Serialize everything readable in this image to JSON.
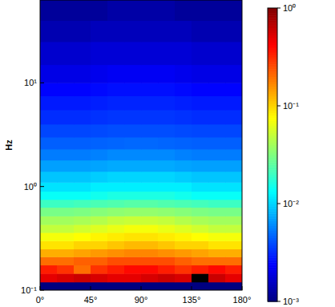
{
  "chart_data": {
    "type": "heatmap",
    "y_label": "Hz",
    "log": "y",
    "xlim": [
      0,
      180
    ],
    "ylim": [
      0.1,
      63
    ],
    "xticks": [
      {
        "value": 0,
        "label": "0°"
      },
      {
        "value": 45,
        "label": "45°"
      },
      {
        "value": 90,
        "label": "90°"
      },
      {
        "value": 135,
        "label": "135°"
      },
      {
        "value": 180,
        "label": "180°"
      }
    ],
    "yticks": [
      {
        "value": 0.1,
        "label": "10⁻¹"
      },
      {
        "value": 1,
        "label": "10⁰"
      },
      {
        "value": 10,
        "label": "10¹"
      }
    ],
    "x_edges": [
      0,
      15,
      30,
      45,
      60,
      75,
      90,
      105,
      120,
      135,
      150,
      165,
      180
    ],
    "y_edges": [
      0.1,
      0.12,
      0.145,
      0.175,
      0.21,
      0.25,
      0.3,
      0.36,
      0.43,
      0.52,
      0.63,
      0.75,
      0.9,
      1.1,
      1.4,
      1.8,
      2.3,
      3,
      4,
      5.5,
      7.5,
      10,
      15,
      25,
      40,
      63
    ],
    "cells": [
      [
        0.001,
        0.001,
        0.001,
        0.001,
        0.001,
        0.001,
        0.001,
        0.001,
        0.001,
        0.001,
        0.001,
        0.001
      ],
      [
        0.5,
        0.55,
        0.6,
        0.55,
        0.5,
        0.5,
        0.55,
        0.6,
        0.55,
        1.5,
        0.6,
        0.5
      ],
      [
        0.35,
        0.3,
        0.2,
        0.3,
        0.35,
        0.4,
        0.4,
        0.35,
        0.3,
        0.35,
        0.4,
        0.35
      ],
      [
        0.2,
        0.2,
        0.22,
        0.22,
        0.25,
        0.25,
        0.25,
        0.25,
        0.22,
        0.2,
        0.2,
        0.2
      ],
      [
        0.13,
        0.13,
        0.14,
        0.15,
        0.16,
        0.17,
        0.17,
        0.16,
        0.15,
        0.14,
        0.13,
        0.13
      ],
      [
        0.09,
        0.09,
        0.1,
        0.1,
        0.11,
        0.12,
        0.12,
        0.11,
        0.1,
        0.1,
        0.09,
        0.09
      ],
      [
        0.07,
        0.07,
        0.075,
        0.08,
        0.085,
        0.09,
        0.09,
        0.085,
        0.08,
        0.075,
        0.07,
        0.07
      ],
      [
        0.05,
        0.05,
        0.055,
        0.06,
        0.065,
        0.07,
        0.07,
        0.065,
        0.06,
        0.055,
        0.05,
        0.05
      ],
      [
        0.04,
        0.04,
        0.042,
        0.045,
        0.05,
        0.052,
        0.052,
        0.05,
        0.045,
        0.042,
        0.04,
        0.04
      ],
      [
        0.03,
        0.03,
        0.031,
        0.033,
        0.035,
        0.036,
        0.036,
        0.035,
        0.033,
        0.031,
        0.03,
        0.03
      ],
      [
        0.02,
        0.02,
        0.021,
        0.022,
        0.023,
        0.024,
        0.024,
        0.023,
        0.022,
        0.021,
        0.02,
        0.02
      ],
      [
        0.014,
        0.014,
        0.014,
        0.015,
        0.016,
        0.016,
        0.016,
        0.016,
        0.015,
        0.014,
        0.014,
        0.014
      ],
      [
        0.011,
        0.011,
        0.011,
        0.012,
        0.012,
        0.012,
        0.012,
        0.012,
        0.012,
        0.011,
        0.011,
        0.011
      ],
      [
        0.009,
        0.009,
        0.009,
        0.0095,
        0.01,
        0.01,
        0.01,
        0.01,
        0.0095,
        0.009,
        0.009,
        0.009
      ],
      [
        0.007,
        0.007,
        0.007,
        0.0072,
        0.0075,
        0.0075,
        0.0075,
        0.0075,
        0.0072,
        0.007,
        0.007,
        0.007
      ],
      [
        0.0055,
        0.0055,
        0.0055,
        0.0057,
        0.006,
        0.006,
        0.006,
        0.006,
        0.0057,
        0.0055,
        0.0055,
        0.0055
      ],
      [
        0.0045,
        0.0045,
        0.0045,
        0.0046,
        0.0047,
        0.0048,
        0.0048,
        0.0047,
        0.0046,
        0.0045,
        0.0045,
        0.0045
      ],
      [
        0.0038,
        0.0038,
        0.0038,
        0.0039,
        0.004,
        0.004,
        0.004,
        0.004,
        0.0039,
        0.0038,
        0.0038,
        0.0038
      ],
      [
        0.0032,
        0.0032,
        0.0032,
        0.0033,
        0.0034,
        0.0034,
        0.0034,
        0.0034,
        0.0033,
        0.0032,
        0.0032,
        0.0032
      ],
      [
        0.0028,
        0.0028,
        0.0028,
        0.0029,
        0.003,
        0.003,
        0.003,
        0.003,
        0.0029,
        0.0028,
        0.0028,
        0.0028
      ],
      [
        0.0024,
        0.0024,
        0.0024,
        0.0025,
        0.0026,
        0.0026,
        0.0026,
        0.0026,
        0.0025,
        0.0024,
        0.0024,
        0.0024
      ],
      [
        0.002,
        0.002,
        0.002,
        0.0021,
        0.0022,
        0.0022,
        0.0022,
        0.0022,
        0.0021,
        0.002,
        0.002,
        0.002
      ],
      [
        0.0017,
        0.0017,
        0.0017,
        0.0018,
        0.0018,
        0.0018,
        0.0018,
        0.0018,
        0.0018,
        0.0017,
        0.0017,
        0.0017
      ],
      [
        0.0014,
        0.0014,
        0.0014,
        0.0015,
        0.0015,
        0.0015,
        0.0015,
        0.0015,
        0.0015,
        0.0014,
        0.0014,
        0.0014
      ],
      [
        0.0012,
        0.0012,
        0.0012,
        0.0012,
        0.0013,
        0.0013,
        0.0013,
        0.0013,
        0.0012,
        0.0012,
        0.0012,
        0.0012
      ]
    ],
    "color_range": [
      0.001,
      1
    ],
    "color_ticks": [
      {
        "value": 0.001,
        "label": "10⁻³"
      },
      {
        "value": 0.01,
        "label": "10⁻²"
      },
      {
        "value": 0.1,
        "label": "10⁻¹"
      },
      {
        "value": 1,
        "label": "10⁰"
      }
    ]
  }
}
